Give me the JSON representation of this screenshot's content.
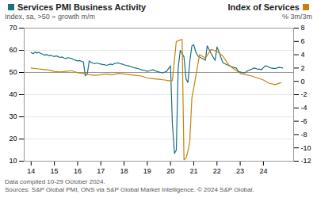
{
  "chart_data": {
    "type": "line",
    "legend": "top",
    "ylabel": "Index, sa, >50 = growth m/m",
    "y2label": "% 3m/3m",
    "annotations": [
      "Data compiled 10-29 October 2024.",
      "Sources: S&P Global PMI, ONS via S&P Global Market Intelligence. © 2024 S&P Global."
    ],
    "xlim": [
      13.7,
      25.3
    ],
    "xticks": [
      14,
      15,
      16,
      17,
      18,
      19,
      20,
      21,
      22,
      23,
      24
    ],
    "ylim": [
      10,
      70
    ],
    "yticks": [
      10,
      20,
      30,
      40,
      50,
      60,
      70
    ],
    "y2lim": [
      -12,
      8
    ],
    "y2ticks": [
      -12,
      -10,
      -8,
      -6,
      -4,
      -2,
      0,
      2,
      4,
      6,
      8
    ],
    "grid": "y",
    "hline": 50,
    "series": [
      {
        "name": "Services PMI Business Activity",
        "color": "#1a7080",
        "x": [
          14.0,
          14.08,
          14.17,
          14.25,
          14.33,
          14.42,
          14.5,
          14.58,
          14.67,
          14.75,
          14.83,
          14.92,
          15.0,
          15.08,
          15.17,
          15.25,
          15.33,
          15.42,
          15.5,
          15.58,
          15.67,
          15.75,
          15.83,
          15.92,
          16.0,
          16.08,
          16.17,
          16.25,
          16.33,
          16.42,
          16.5,
          16.58,
          16.67,
          16.75,
          16.83,
          16.92,
          17.0,
          17.08,
          17.17,
          17.25,
          17.33,
          17.42,
          17.5,
          17.58,
          17.67,
          17.75,
          17.83,
          17.92,
          18.0,
          18.08,
          18.17,
          18.25,
          18.33,
          18.42,
          18.5,
          18.58,
          18.67,
          18.75,
          18.83,
          18.92,
          19.0,
          19.08,
          19.17,
          19.25,
          19.33,
          19.42,
          19.5,
          19.58,
          19.67,
          19.75,
          19.83,
          19.92,
          20.0,
          20.08,
          20.17,
          20.25,
          20.33,
          20.42,
          20.5,
          20.58,
          20.67,
          20.75,
          20.83,
          20.92,
          21.0,
          21.08,
          21.17,
          21.25,
          21.33,
          21.42,
          21.5,
          21.58,
          21.67,
          21.75,
          21.83,
          21.92,
          22.0,
          22.08,
          22.17,
          22.25,
          22.33,
          22.42,
          22.5,
          22.58,
          22.67,
          22.75,
          22.83,
          22.92,
          23.0,
          23.08,
          23.17,
          23.25,
          23.33,
          23.42,
          23.5,
          23.58,
          23.67,
          23.75,
          23.83,
          23.92,
          24.0,
          24.08,
          24.17,
          24.25,
          24.33,
          24.42,
          24.5,
          24.58,
          24.67,
          24.75,
          24.83
        ],
        "values": [
          59.0,
          58.5,
          59.2,
          58.8,
          59.1,
          58.6,
          58.2,
          57.8,
          58.1,
          57.5,
          57.7,
          57.4,
          57.2,
          57.5,
          57.1,
          56.8,
          57.0,
          56.5,
          56.3,
          56.7,
          56.5,
          56.2,
          55.8,
          55.5,
          55.2,
          55.4,
          55.0,
          54.8,
          48.5,
          49.5,
          55.2,
          54.5,
          54.2,
          54.0,
          54.3,
          54.0,
          53.8,
          53.6,
          53.5,
          53.2,
          53.5,
          53.8,
          53.5,
          54.0,
          54.2,
          54.3,
          54.0,
          53.8,
          53.5,
          53.2,
          53.0,
          52.8,
          52.5,
          52.2,
          52.0,
          51.8,
          51.5,
          51.2,
          51.0,
          50.8,
          50.5,
          50.7,
          51.0,
          51.2,
          50.8,
          50.5,
          50.2,
          50.0,
          49.8,
          50.2,
          50.5,
          51.8,
          53.0,
          27.0,
          13.5,
          15.0,
          52.0,
          60.0,
          58.5,
          57.0,
          47.0,
          45.5,
          55.0,
          62.0,
          62.5,
          59.5,
          57.5,
          57.0,
          56.5,
          56.0,
          55.5,
          62.0,
          60.2,
          58.5,
          57.0,
          55.5,
          61.5,
          59.5,
          56.8,
          54.5,
          54.0,
          53.5,
          53.2,
          52.8,
          52.5,
          52.2,
          52.0,
          50.5,
          50.2,
          50.0,
          49.8,
          50.2,
          50.8,
          51.2,
          51.5,
          52.0,
          51.8,
          51.5,
          51.5,
          51.2,
          52.2,
          53.0,
          52.8,
          52.3,
          52.0,
          51.8,
          51.8,
          52.0,
          52.3,
          52.2,
          52.0
        ]
      },
      {
        "name": "Index of Services",
        "color": "#c8820a",
        "axis": "y2",
        "x": [
          14.0,
          14.25,
          14.5,
          14.75,
          15.0,
          15.25,
          15.5,
          15.75,
          16.0,
          16.25,
          16.5,
          16.75,
          17.0,
          17.25,
          17.5,
          17.75,
          18.0,
          18.25,
          18.5,
          18.75,
          19.0,
          19.25,
          19.5,
          19.75,
          19.92,
          20.08,
          20.25,
          20.42,
          20.5,
          20.58,
          20.67,
          20.75,
          20.83,
          20.92,
          21.0,
          21.25,
          21.5,
          21.75,
          22.0,
          22.25,
          22.5,
          22.75,
          23.0,
          23.25,
          23.5,
          23.75,
          24.0,
          24.25,
          24.5,
          24.75
        ],
        "values": [
          2.0,
          1.9,
          1.8,
          1.7,
          1.5,
          1.4,
          1.5,
          1.6,
          1.3,
          1.2,
          1.0,
          0.9,
          1.0,
          1.1,
          1.0,
          1.2,
          1.1,
          1.0,
          0.9,
          0.8,
          0.5,
          0.4,
          0.3,
          0.2,
          0.1,
          0.1,
          6.0,
          6.2,
          6.3,
          -11.8,
          -11.5,
          -10.5,
          -9.0,
          -2.5,
          -1.0,
          4.0,
          3.5,
          4.8,
          4.5,
          3.8,
          2.5,
          1.8,
          1.2,
          1.0,
          0.8,
          0.5,
          0.2,
          -0.3,
          -0.5,
          -0.2
        ]
      }
    ]
  }
}
